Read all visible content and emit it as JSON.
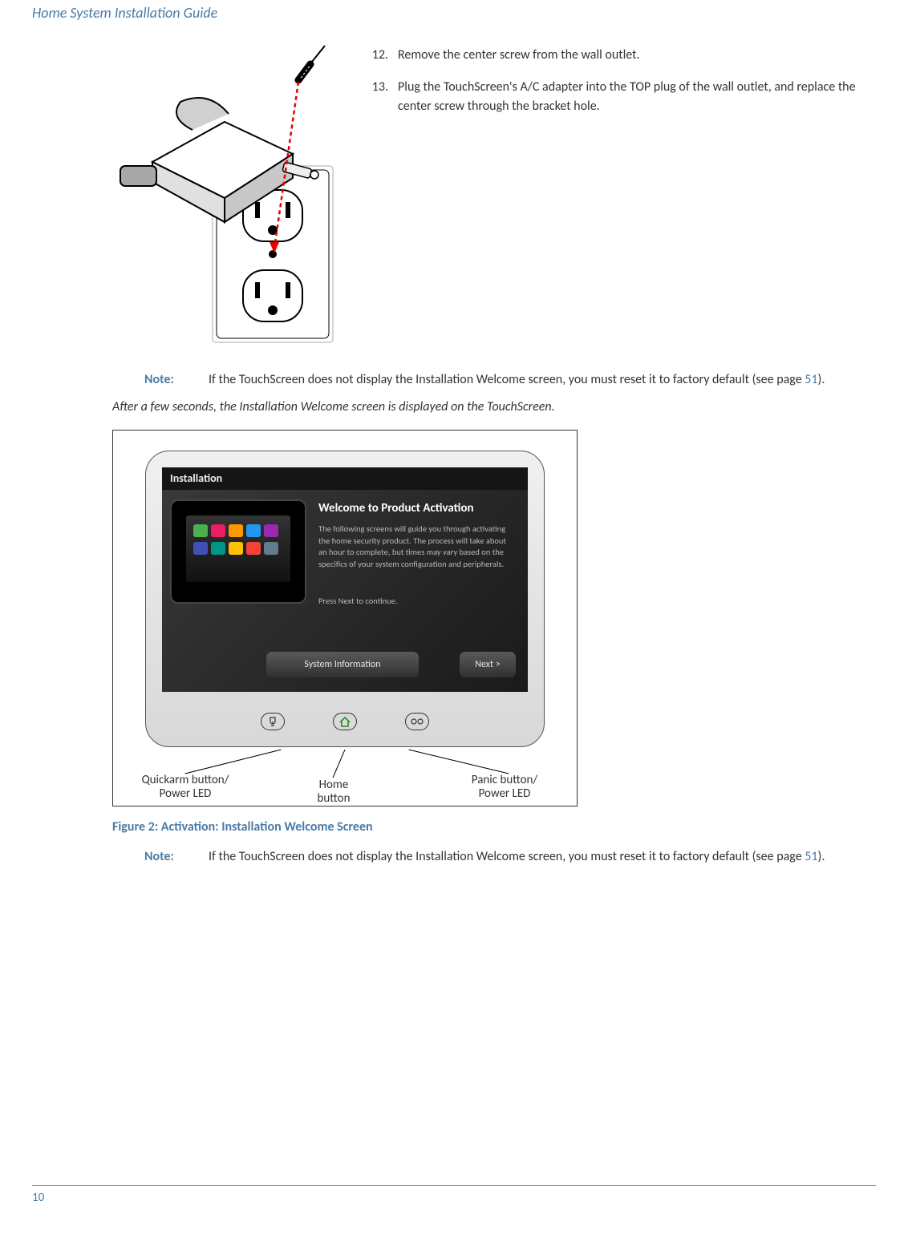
{
  "header": {
    "title": "Home System Installation Guide"
  },
  "steps": [
    {
      "num": "12.",
      "text": "Remove the center screw from the wall outlet."
    },
    {
      "num": "13.",
      "text": "Plug the TouchScreen's A/C adapter into the TOP plug of the wall outlet, and replace the center screw through the bracket hole."
    }
  ],
  "note1": {
    "label": "Note:",
    "text_pre": "If the TouchScreen does not display the Installation Welcome screen, you must reset it to factory default (see page ",
    "page": "51",
    "text_post": ")."
  },
  "result_line": "After a few seconds, the Installation Welcome screen is displayed on the TouchScreen.",
  "touchscreen": {
    "topbar": "Installation",
    "welcome_title": "Welcome to Product Activation",
    "welcome_body": "The following screens will guide you through activating the home security product. The process will take about an hour to complete, but times may vary based on the specifics of your system configuration and peripherals.",
    "press_next": "Press Next to continue.",
    "sysinfo_btn": "System Information",
    "next_btn": "Next >",
    "icon_colors_row1": [
      "#4caf50",
      "#e91e63",
      "#ff9800",
      "#2196f3",
      "#9c27b0"
    ],
    "icon_colors_row2": [
      "#3f51b5",
      "#009688",
      "#ffc107",
      "#f44336",
      "#607d8b"
    ]
  },
  "callouts": {
    "left_l1": "Quickarm button/",
    "left_l2": "Power LED",
    "center_l1": "Home",
    "center_l2": "button",
    "right_l1": "Panic button/",
    "right_l2": "Power LED"
  },
  "figure_caption": "Figure 2:  Activation: Installation Welcome Screen",
  "note2": {
    "label": "Note:",
    "text_pre": "If the TouchScreen does not display the Installation Welcome screen, you must reset it to factory default (see page ",
    "page": "51",
    "text_post": ")."
  },
  "footer": {
    "page": "10"
  }
}
